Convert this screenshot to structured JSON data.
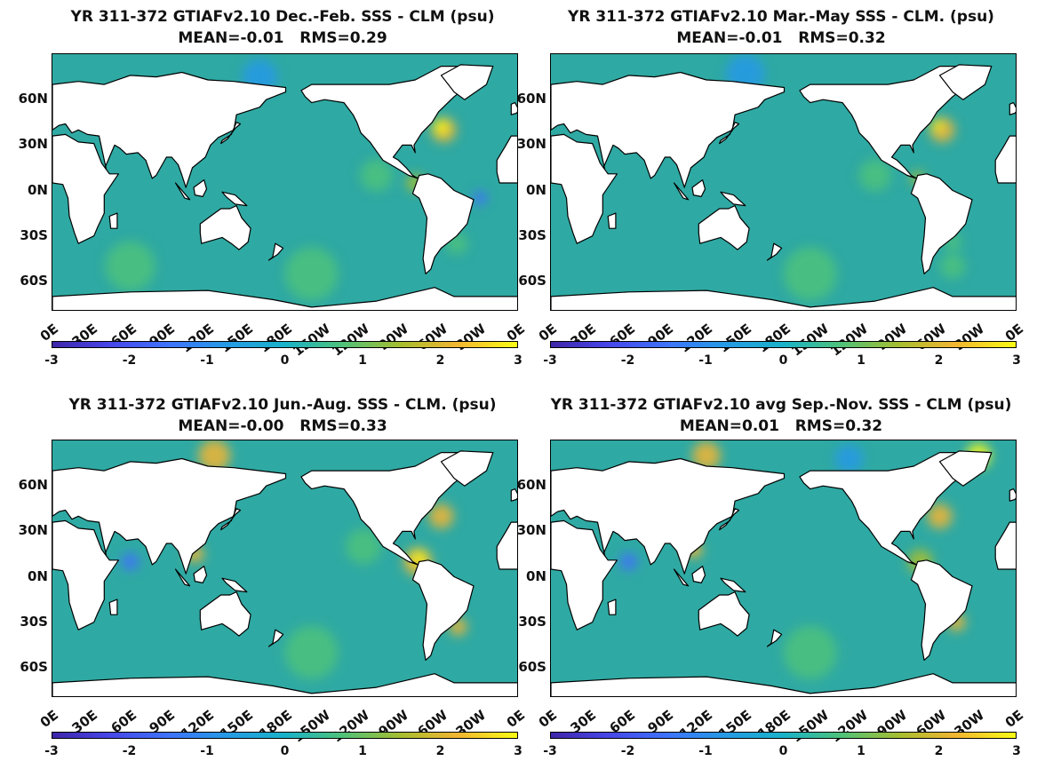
{
  "panels": [
    {
      "title": "YR 311-372 GTIAFv2.10  Dec.-Feb. SSS - CLM (psu)",
      "stats": "MEAN=-0.01   RMS=0.29"
    },
    {
      "title": "YR 311-372 GTIAFv2.10 Mar.-May SSS - CLM. (psu)",
      "stats": "MEAN=-0.01   RMS=0.32"
    },
    {
      "title": "YR 311-372 GTIAFv2.10 Jun.-Aug. SSS - CLM. (psu)",
      "stats": "MEAN=-0.00   RMS=0.33"
    },
    {
      "title": "YR 311-372 GTIAFv2.10 avg Sep.-Nov. SSS - CLM (psu)",
      "stats": "MEAN=0.01   RMS=0.32"
    }
  ],
  "lat_ticks": [
    "60N",
    "30N",
    "0N",
    "30S",
    "60S"
  ],
  "lon_ticks": [
    "0E",
    "30E",
    "60E",
    "90E",
    "120E",
    "150E",
    "180E",
    "150W",
    "120W",
    "90W",
    "60W",
    "30W",
    "0E"
  ],
  "colorbar": {
    "ticks": [
      "-3",
      "-2",
      "-1",
      "0",
      "1",
      "2",
      "3"
    ],
    "colormap": "parula",
    "range": [
      -3,
      3
    ],
    "colors": [
      "#3e26a8",
      "#4745e7",
      "#3e73fb",
      "#2699e6",
      "#19b2c9",
      "#4cc27c",
      "#a7be2f",
      "#f2b532",
      "#f9fb14"
    ]
  },
  "map": {
    "ocean_color": "#2fa9a3",
    "land_color": "#ffffff",
    "lat_range": [
      -80,
      90
    ],
    "lon_range": [
      0,
      360
    ]
  }
}
